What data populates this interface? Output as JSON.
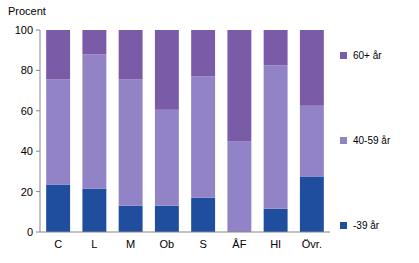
{
  "chart_data": {
    "type": "bar",
    "stacked": true,
    "y_label": "Procent",
    "categories": [
      "C",
      "L",
      "M",
      "Ob",
      "S",
      "ÅF",
      "HI",
      "Övr."
    ],
    "series": [
      {
        "name": "-39 år",
        "color": "#1f4e9e",
        "values": [
          23.5,
          21.5,
          13,
          13,
          17,
          0,
          11.5,
          27.5
        ]
      },
      {
        "name": "40-59 år",
        "color": "#9283c6",
        "values": [
          52,
          66.5,
          62.5,
          47.5,
          60,
          45,
          71,
          35
        ]
      },
      {
        "name": "60+ år",
        "color": "#7a5ba7",
        "values": [
          24.5,
          12,
          24.5,
          39.5,
          23,
          55,
          17.5,
          37.5
        ]
      }
    ],
    "ylim": [
      0,
      100
    ],
    "yticks": [
      0,
      20,
      40,
      60,
      80,
      100
    ],
    "grid": false,
    "legend": "right"
  }
}
